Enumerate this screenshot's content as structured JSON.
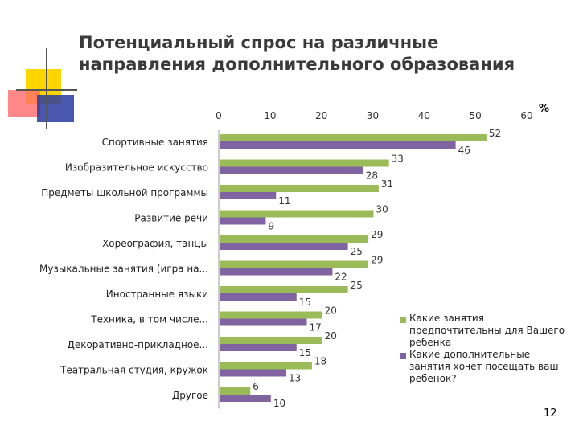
{
  "title": {
    "line1": "Потенциальный спрос на различные",
    "line2": "направления дополнительного образования"
  },
  "page_number": "12",
  "colors": {
    "series1": "#9bbb59",
    "series2": "#8064a2",
    "title": "#3a3a3a",
    "deco_yellow": "#ffd500",
    "deco_red": "#ff5a5a",
    "deco_blue": "#2a3aa0"
  },
  "chart_data": {
    "type": "bar",
    "orientation": "horizontal",
    "unit_label": "%",
    "xlim": [
      0,
      60
    ],
    "xticks": [
      0,
      10,
      20,
      30,
      40,
      50,
      60
    ],
    "categories": [
      "Спортивные занятия",
      "Изобразительное искусство",
      "Предметы школьной программы",
      "Развитие речи",
      "Хореография, танцы",
      "Музыкальные занятия (игра на...",
      "Иностранные языки",
      "Техника, в том числе...",
      "Декоративно-прикладное...",
      "Театральная студия, кружок",
      "Другое"
    ],
    "series": [
      {
        "name": "Какие занятия предпочтительны для Вашего ребенка",
        "values": [
          52,
          33,
          31,
          30,
          29,
          29,
          25,
          20,
          20,
          18,
          6
        ]
      },
      {
        "name": "Какие дополнительные занятия хочет посещать ваш ребенок?",
        "values": [
          46,
          28,
          11,
          9,
          25,
          22,
          15,
          17,
          15,
          13,
          10
        ]
      }
    ],
    "legend_position": "right"
  }
}
